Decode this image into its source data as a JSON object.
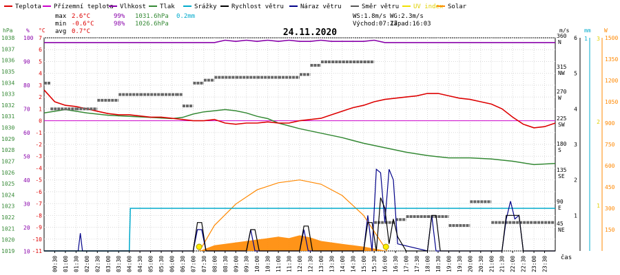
{
  "legend": [
    {
      "label": "Teplota",
      "color": "#dd0000"
    },
    {
      "label": "Přízemní teplota",
      "color": "#cc00cc"
    },
    {
      "label": "Vlhkost",
      "color": "#8800aa"
    },
    {
      "label": "Tlak",
      "color": "#338833"
    },
    {
      "label": "Srážky",
      "color": "#00aacc"
    },
    {
      "label": "Rychlost větru",
      "color": "#000000"
    },
    {
      "label": "Náraz větru",
      "color": "#000088"
    },
    {
      "label": "Směr větru",
      "color": "#555555"
    },
    {
      "label": "UV index",
      "color": "#f0e000"
    },
    {
      "label": "Solar",
      "color": "#ff8800"
    }
  ],
  "stats": {
    "max_label": "max",
    "min_label": "min",
    "avg_label": "avg",
    "max_temp": "2.6°C",
    "max_hum": "99%",
    "max_press": "1031.6hPa",
    "max_rain": "0.2mm",
    "min_temp": "-0.6°C",
    "min_hum": "98%",
    "min_press": "1026.6hPa",
    "avg_temp": "0.7°C"
  },
  "wind_stats": {
    "ws": "WS:1.8m/s",
    "wg": "WG:2.3m/s",
    "sunrise": "Východ:07:17",
    "sunset": "Západ:16:03"
  },
  "chart_data": {
    "type": "line",
    "title": "24.11.2020",
    "xlabel": "čas",
    "x_ticks": [
      "00:30",
      "01:00",
      "01:30",
      "02:00",
      "02:30",
      "03:00",
      "03:30",
      "04:00",
      "04:30",
      "05:00",
      "05:30",
      "06:00",
      "06:30",
      "07:00",
      "07:30",
      "08:00",
      "08:30",
      "09:00",
      "09:30",
      "10:00",
      "10:30",
      "11:00",
      "11:30",
      "12:00",
      "12:30",
      "13:00",
      "13:30",
      "14:00",
      "14:30",
      "15:00",
      "15:30",
      "16:00",
      "16:30",
      "17:00",
      "17:30",
      "18:00",
      "18:30",
      "19:00",
      "19:30",
      "20:00",
      "20:30",
      "21:00",
      "21:30",
      "22:00",
      "22:30",
      "23:00",
      "23:30"
    ],
    "axes": {
      "pressure": {
        "unit": "hPa",
        "range": [
          1019,
          1038
        ],
        "ticks": [
          1019,
          1020,
          1021,
          1022,
          1023,
          1024,
          1025,
          1026,
          1027,
          1028,
          1029,
          1030,
          1031,
          1032,
          1033,
          1034,
          1035,
          1036,
          1037,
          1038
        ]
      },
      "humidity": {
        "unit": "%",
        "ticks": [
          100,
          90,
          80,
          70,
          60,
          50,
          40,
          30,
          20,
          10
        ]
      },
      "temperature": {
        "unit": "°C",
        "range": [
          -11,
          7
        ],
        "ticks": [
          7,
          6,
          5,
          4,
          3,
          2,
          1,
          0,
          -1,
          -2,
          -3,
          -4,
          -5,
          -6,
          -7,
          -8,
          -9,
          -10,
          -11
        ]
      },
      "wind_direction": {
        "ticks": [
          "360 N",
          "315 NW",
          "270 W",
          "225 SW",
          "180 S",
          "135 SE",
          "90 E",
          "45 NE"
        ]
      },
      "wind_speed": {
        "unit": "m/s",
        "range": [
          0,
          6
        ],
        "ticks": [
          "6",
          "5",
          "4",
          "3",
          "2",
          "1"
        ]
      },
      "rain": {
        "unit": "mm",
        "ticks": [
          "1"
        ]
      },
      "uv_index": {
        "ticks": [
          "3",
          "2",
          "1"
        ]
      },
      "solar": {
        "unit": "W",
        "range": [
          0,
          1500
        ],
        "ticks": [
          1500,
          1350,
          1200,
          1050,
          900,
          750,
          600,
          450,
          300,
          150
        ]
      }
    },
    "series": [
      {
        "name": "Teplota",
        "axis": "temperature",
        "color": "#dd0000",
        "x": [
          0,
          0.5,
          1,
          1.5,
          2,
          2.5,
          3,
          3.5,
          4,
          4.5,
          5,
          5.5,
          6,
          6.5,
          7,
          7.5,
          8,
          8.5,
          9,
          9.5,
          10,
          10.5,
          11,
          11.5,
          12,
          12.5,
          13,
          13.5,
          14,
          14.5,
          15,
          15.5,
          16,
          16.5,
          17,
          17.5,
          18,
          18.5,
          19,
          19.5,
          20,
          20.5,
          21,
          21.5,
          22,
          22.5,
          23,
          23.5,
          24
        ],
        "y": [
          2.6,
          1.6,
          1.3,
          1.2,
          1.0,
          0.8,
          0.6,
          0.5,
          0.5,
          0.4,
          0.3,
          0.3,
          0.2,
          0.1,
          0.0,
          0.0,
          0.1,
          -0.2,
          -0.3,
          -0.2,
          -0.2,
          -0.1,
          -0.2,
          -0.2,
          0.0,
          0.1,
          0.2,
          0.5,
          0.8,
          1.1,
          1.3,
          1.6,
          1.8,
          1.9,
          2.0,
          2.1,
          2.3,
          2.3,
          2.1,
          1.9,
          1.8,
          1.6,
          1.4,
          1.0,
          0.3,
          -0.3,
          -0.6,
          -0.5,
          -0.2
        ]
      },
      {
        "name": "Přízemní teplota",
        "axis": "temperature",
        "color": "#cc00cc",
        "x": [
          0,
          24
        ],
        "y": [
          0.0,
          0.0
        ]
      },
      {
        "name": "Vlhkost",
        "axis": "humidity",
        "color": "#8800aa",
        "x": [
          0,
          8,
          8.5,
          9,
          9.5,
          10,
          10.5,
          11,
          11.5,
          12,
          12.5,
          13,
          13.5,
          14,
          14.5,
          15,
          15.5,
          16,
          24
        ],
        "y": [
          98,
          98,
          99,
          98.5,
          99,
          98.5,
          99,
          98.5,
          99,
          98.5,
          98.5,
          99,
          98.5,
          98.5,
          98.5,
          98.5,
          99,
          98,
          98
        ]
      },
      {
        "name": "Tlak",
        "axis": "pressure",
        "color": "#338833",
        "x": [
          0,
          1,
          2,
          3,
          4,
          5,
          6,
          6.5,
          7,
          7.5,
          8,
          8.5,
          9,
          9.5,
          10,
          10.5,
          11,
          12,
          13,
          14,
          15,
          16,
          17,
          18,
          19,
          20,
          21,
          22,
          23,
          24
        ],
        "y": [
          1031.3,
          1031.6,
          1031.3,
          1031.1,
          1031.0,
          1030.9,
          1030.8,
          1030.9,
          1031.2,
          1031.4,
          1031.5,
          1031.6,
          1031.5,
          1031.3,
          1031.0,
          1030.8,
          1030.4,
          1029.9,
          1029.5,
          1029.1,
          1028.6,
          1028.2,
          1027.8,
          1027.5,
          1027.3,
          1027.3,
          1027.2,
          1027.0,
          1026.7,
          1026.8
        ]
      },
      {
        "name": "Srážky",
        "axis": "rain",
        "color": "#00aacc",
        "x": [
          0,
          4.0,
          4.05,
          24
        ],
        "y": [
          0,
          0,
          0.2,
          0.2
        ]
      },
      {
        "name": "Rychlost větru",
        "axis": "wind_speed",
        "color": "#000000",
        "x": [
          0,
          7.0,
          7.2,
          7.4,
          7.6,
          7.8,
          9.5,
          9.7,
          9.9,
          10.1,
          12.0,
          12.2,
          12.4,
          12.6,
          15.0,
          15.2,
          15.4,
          15.6,
          15.8,
          16.0,
          16.2,
          16.4,
          16.6,
          17.0,
          18.0,
          18.2,
          18.4,
          18.6,
          21.5,
          21.7,
          21.9,
          22.1,
          22.3,
          22.5,
          24
        ],
        "y": [
          0,
          0,
          0.8,
          0.8,
          0,
          0,
          0,
          0.6,
          0.6,
          0,
          0,
          0.7,
          0.7,
          0,
          0,
          0.8,
          0.8,
          0,
          1.5,
          1.2,
          0.2,
          0.9,
          0.4,
          0,
          0,
          1.0,
          1.0,
          0,
          0,
          1.0,
          1.0,
          1.0,
          1.0,
          0,
          0
        ]
      },
      {
        "name": "Náraz větru",
        "axis": "wind_speed",
        "color": "#000088",
        "x": [
          0,
          1.6,
          1.7,
          1.8,
          7.0,
          7.2,
          7.4,
          7.6,
          9.5,
          9.7,
          9.9,
          12.0,
          12.2,
          12.4,
          15.0,
          15.2,
          15.4,
          15.6,
          15.8,
          16.0,
          16.2,
          16.4,
          16.6,
          18.0,
          18.2,
          18.4,
          18.6,
          21.5,
          21.7,
          21.9,
          22.1,
          22.3,
          22.5,
          24
        ],
        "y": [
          0,
          0,
          0.5,
          0,
          0,
          0.6,
          0.6,
          0,
          0,
          0.6,
          0,
          0,
          0.6,
          0,
          0,
          1.0,
          0,
          2.3,
          2.2,
          0.8,
          2.3,
          2.0,
          0.2,
          0,
          1.0,
          0,
          0,
          0,
          0.9,
          1.4,
          0.9,
          1.0,
          0,
          0
        ]
      },
      {
        "name": "Směr větru",
        "axis": "wind_direction",
        "x": [
          0,
          0.3,
          1.5,
          2.5,
          3.5,
          4.5,
          5.5,
          6.2,
          6.5,
          7.0,
          7.5,
          8.0,
          9.0,
          10.0,
          11.0,
          12.0,
          12.5,
          13.0,
          13.5,
          14.0,
          14.5,
          15.0,
          15.5,
          16.0,
          16.5,
          17.0,
          18.0,
          19.0,
          20.0,
          21.0,
          22.0,
          23.0,
          24
        ],
        "y": [
          290,
          245,
          245,
          260,
          270,
          270,
          270,
          270,
          250,
          290,
          295,
          300,
          300,
          300,
          300,
          305,
          320,
          325,
          325,
          325,
          325,
          325,
          50,
          50,
          55,
          60,
          60,
          45,
          85,
          50,
          50,
          50,
          50
        ]
      },
      {
        "name": "Solar",
        "axis": "solar",
        "color": "#ff8800",
        "x": [
          7.3,
          8,
          9,
          10,
          11,
          11.5,
          12,
          12.5,
          13,
          14,
          15,
          16.1
        ],
        "y": [
          0,
          40,
          60,
          80,
          100,
          90,
          110,
          95,
          70,
          50,
          30,
          0
        ]
      },
      {
        "name": "Solar max",
        "axis": "solar",
        "color": "#ff8800",
        "x": [
          7.3,
          8,
          9,
          10,
          11,
          12,
          13,
          14,
          15,
          16.1
        ],
        "y": [
          0,
          180,
          330,
          430,
          480,
          500,
          470,
          390,
          250,
          0
        ]
      },
      {
        "name": "UV index",
        "axis": "uv_index",
        "color": "#f0e000",
        "x": [
          7.3,
          16.1
        ],
        "y": [
          0,
          0
        ]
      }
    ]
  }
}
